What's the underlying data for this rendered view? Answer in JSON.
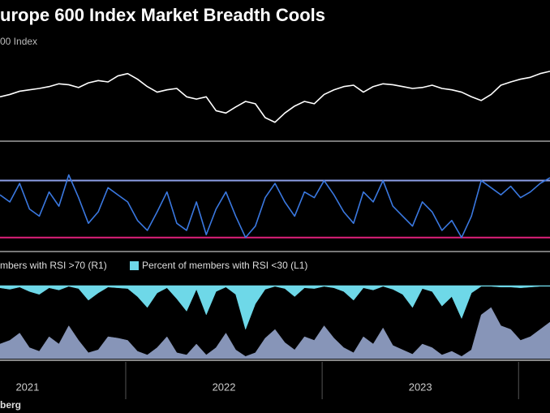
{
  "chart_data": [
    {
      "type": "line",
      "title": "urope 600 Index Market Breadth Cools",
      "xlim": [
        2021.36,
        2024.16
      ],
      "ylim": [
        360,
        500
      ],
      "x": [
        2021.36,
        2021.41,
        2021.46,
        2021.51,
        2021.56,
        2021.61,
        2021.66,
        2021.71,
        2021.76,
        2021.81,
        2021.86,
        2021.91,
        2021.96,
        2022.01,
        2022.06,
        2022.11,
        2022.16,
        2022.21,
        2022.26,
        2022.31,
        2022.36,
        2022.41,
        2022.46,
        2022.51,
        2022.56,
        2022.61,
        2022.66,
        2022.71,
        2022.76,
        2022.81,
        2022.86,
        2022.91,
        2022.96,
        2023.01,
        2023.06,
        2023.11,
        2023.16,
        2023.21,
        2023.26,
        2023.31,
        2023.36,
        2023.41,
        2023.46,
        2023.51,
        2023.56,
        2023.61,
        2023.66,
        2023.71,
        2023.76,
        2023.81,
        2023.86,
        2023.91,
        2023.96,
        2024.01,
        2024.06,
        2024.11,
        2024.16
      ],
      "series": [
        {
          "name": "00 Index",
          "color": "#ffffff",
          "values": [
            440,
            445,
            452,
            455,
            458,
            462,
            468,
            466,
            460,
            470,
            475,
            472,
            485,
            490,
            478,
            462,
            450,
            455,
            458,
            440,
            435,
            440,
            410,
            405,
            418,
            430,
            425,
            395,
            385,
            405,
            420,
            430,
            425,
            445,
            455,
            462,
            465,
            450,
            462,
            468,
            466,
            462,
            458,
            460,
            465,
            458,
            455,
            450,
            440,
            432,
            445,
            465,
            472,
            478,
            482,
            490,
            495
          ]
        }
      ]
    },
    {
      "type": "line",
      "xlim": [
        2021.36,
        2024.16
      ],
      "ylim": [
        23,
        80
      ],
      "reference_lines": [
        {
          "value": 70,
          "color": "#8ea0e8"
        },
        {
          "value": 30,
          "color": "#e0207a"
        }
      ],
      "x": [
        2021.36,
        2021.41,
        2021.46,
        2021.51,
        2021.56,
        2021.61,
        2021.66,
        2021.71,
        2021.76,
        2021.81,
        2021.86,
        2021.91,
        2021.96,
        2022.01,
        2022.06,
        2022.11,
        2022.16,
        2022.21,
        2022.26,
        2022.31,
        2022.36,
        2022.41,
        2022.46,
        2022.51,
        2022.56,
        2022.61,
        2022.66,
        2022.71,
        2022.76,
        2022.81,
        2022.86,
        2022.91,
        2022.96,
        2023.01,
        2023.06,
        2023.11,
        2023.16,
        2023.21,
        2023.26,
        2023.31,
        2023.36,
        2023.41,
        2023.46,
        2023.51,
        2023.56,
        2023.61,
        2023.66,
        2023.71,
        2023.76,
        2023.81,
        2023.86,
        2023.91,
        2023.96,
        2024.01,
        2024.06,
        2024.11,
        2024.16
      ],
      "series": [
        {
          "color": "#3a78e0",
          "values": [
            60,
            55,
            68,
            50,
            45,
            62,
            52,
            74,
            58,
            40,
            48,
            65,
            60,
            55,
            42,
            35,
            48,
            62,
            40,
            35,
            55,
            32,
            50,
            62,
            45,
            30,
            38,
            58,
            68,
            55,
            45,
            62,
            58,
            70,
            60,
            48,
            40,
            62,
            55,
            70,
            52,
            45,
            38,
            55,
            48,
            35,
            42,
            30,
            45,
            70,
            65,
            60,
            66,
            58,
            62,
            68,
            72
          ]
        }
      ]
    },
    {
      "type": "area",
      "xlim": [
        2021.36,
        2024.16
      ],
      "ylim": [
        100,
        0
      ],
      "y2lim": [
        0,
        100
      ],
      "xticks": [
        {
          "value": 2021.5,
          "label": "2021"
        },
        {
          "value": 2022.5,
          "label": "2022"
        },
        {
          "value": 2023.5,
          "label": "2023"
        }
      ],
      "year_dividers": [
        2022,
        2023,
        2024
      ],
      "source": "berg",
      "x": [
        2021.36,
        2021.41,
        2021.46,
        2021.51,
        2021.56,
        2021.61,
        2021.66,
        2021.71,
        2021.76,
        2021.81,
        2021.86,
        2021.91,
        2021.96,
        2022.01,
        2022.06,
        2022.11,
        2022.16,
        2022.21,
        2022.26,
        2022.31,
        2022.36,
        2022.41,
        2022.46,
        2022.51,
        2022.56,
        2022.61,
        2022.66,
        2022.71,
        2022.76,
        2022.81,
        2022.86,
        2022.91,
        2022.96,
        2023.01,
        2023.06,
        2023.11,
        2023.16,
        2023.21,
        2023.26,
        2023.31,
        2023.36,
        2023.41,
        2023.46,
        2023.51,
        2023.56,
        2023.61,
        2023.66,
        2023.71,
        2023.76,
        2023.81,
        2023.86,
        2023.91,
        2023.96,
        2024.01,
        2024.06,
        2024.11,
        2024.16
      ],
      "series": [
        {
          "name": "mbers with RSI >70 (R1)",
          "color": "#8795b8",
          "axis": "y2",
          "values": [
            20,
            25,
            35,
            15,
            10,
            30,
            20,
            45,
            25,
            8,
            12,
            30,
            28,
            25,
            10,
            5,
            15,
            30,
            8,
            5,
            20,
            5,
            15,
            35,
            12,
            3,
            8,
            28,
            40,
            22,
            12,
            30,
            25,
            45,
            28,
            15,
            8,
            30,
            20,
            42,
            18,
            12,
            6,
            20,
            15,
            5,
            10,
            3,
            12,
            60,
            70,
            45,
            40,
            25,
            30,
            40,
            50
          ]
        },
        {
          "name": "Percent of members with RSI <30 (L1)",
          "color": "#6ed8e8",
          "values": [
            3,
            5,
            2,
            8,
            12,
            3,
            6,
            1,
            4,
            20,
            10,
            2,
            3,
            4,
            15,
            30,
            10,
            3,
            18,
            35,
            5,
            40,
            8,
            2,
            12,
            60,
            25,
            5,
            1,
            4,
            15,
            3,
            4,
            1,
            3,
            8,
            20,
            3,
            6,
            1,
            5,
            12,
            30,
            4,
            8,
            28,
            15,
            45,
            10,
            1,
            1,
            2,
            2,
            3,
            2,
            1,
            1
          ]
        }
      ]
    }
  ]
}
